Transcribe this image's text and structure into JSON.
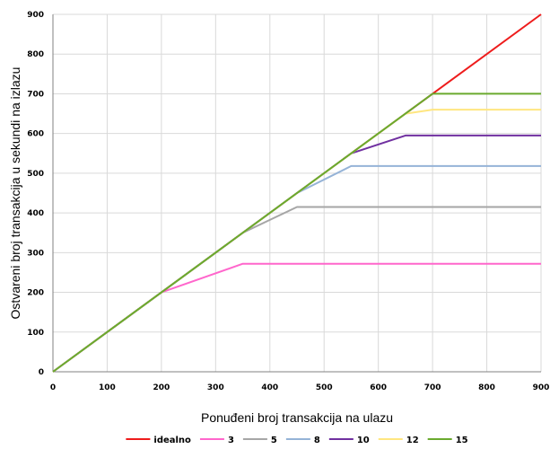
{
  "chart_data": {
    "type": "line",
    "xlabel": "Ponuđeni broj transakcija na ulazu",
    "ylabel": "Ostvareni broj transakcija u sekundi na izlazu",
    "xlim": [
      0,
      900
    ],
    "ylim": [
      0,
      900
    ],
    "xticks": [
      0,
      100,
      200,
      300,
      400,
      500,
      600,
      700,
      800,
      900
    ],
    "yticks": [
      0,
      100,
      200,
      300,
      400,
      500,
      600,
      700,
      800,
      900
    ],
    "grid": true,
    "legend_position": "bottom",
    "series": [
      {
        "name": "idealno",
        "color": "#ee1c1c",
        "points": [
          [
            0,
            0
          ],
          [
            900,
            900
          ]
        ]
      },
      {
        "name": "3",
        "color": "#ff66cc",
        "points": [
          [
            0,
            0
          ],
          [
            200,
            200
          ],
          [
            350,
            272
          ],
          [
            900,
            272
          ]
        ]
      },
      {
        "name": "5",
        "color": "#a6a6a6",
        "points": [
          [
            0,
            0
          ],
          [
            350,
            350
          ],
          [
            450,
            415
          ],
          [
            900,
            415
          ]
        ]
      },
      {
        "name": "8",
        "color": "#95b3d7",
        "points": [
          [
            0,
            0
          ],
          [
            450,
            450
          ],
          [
            550,
            518
          ],
          [
            900,
            518
          ]
        ]
      },
      {
        "name": "10",
        "color": "#7030a0",
        "points": [
          [
            0,
            0
          ],
          [
            550,
            550
          ],
          [
            650,
            595
          ],
          [
            900,
            595
          ]
        ]
      },
      {
        "name": "12",
        "color": "#ffe680",
        "points": [
          [
            0,
            0
          ],
          [
            650,
            650
          ],
          [
            700,
            660
          ],
          [
            900,
            660
          ]
        ]
      },
      {
        "name": "15",
        "color": "#6aaa2e",
        "points": [
          [
            0,
            0
          ],
          [
            700,
            700
          ],
          [
            900,
            700
          ]
        ]
      }
    ]
  }
}
